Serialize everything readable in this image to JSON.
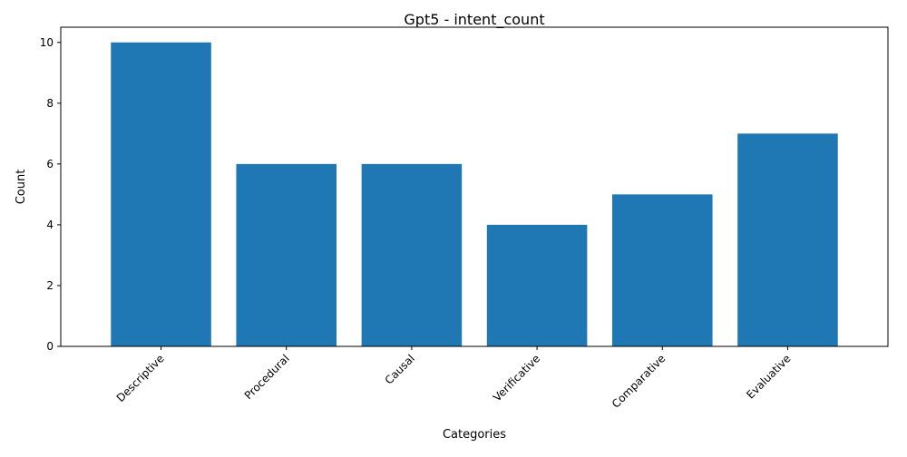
{
  "chart_data": {
    "type": "bar",
    "title": "Gpt5 - intent_count",
    "xlabel": "Categories",
    "ylabel": "Count",
    "categories": [
      "Descriptive",
      "Procedural",
      "Causal",
      "Verificative",
      "Comparative",
      "Evaluative"
    ],
    "values": [
      10,
      6,
      6,
      4,
      5,
      7
    ],
    "ylim": [
      0,
      10.5
    ],
    "yticks": [
      0,
      2,
      4,
      6,
      8,
      10
    ],
    "grid": false,
    "bar_color": "#1f77b4"
  }
}
